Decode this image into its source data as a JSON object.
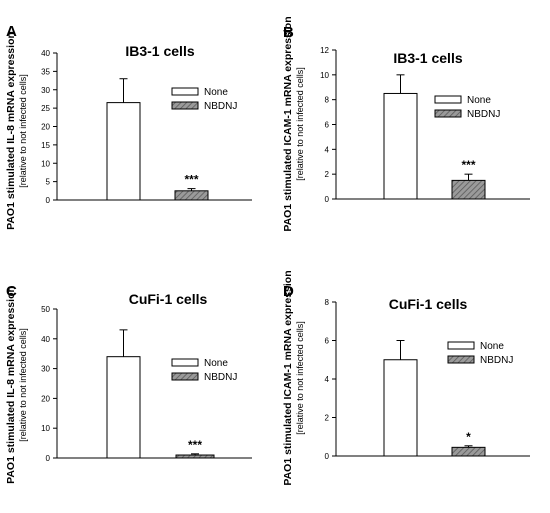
{
  "legend": {
    "none_label": "None",
    "treated_label": "NBDNJ"
  },
  "colors": {
    "none_fill": "#ffffff",
    "treated_fill": "#8c8c8c",
    "axis": "#000000"
  },
  "chart_data": [
    {
      "panel_letter": "A",
      "type": "bar",
      "title": "IB3-1 cells",
      "ylabel_line1": "PAO1 stimulated IL-8 mRNA expression",
      "ylabel_line2": "[relative to not infected cells]",
      "ylim": [
        0,
        40
      ],
      "yticks": [
        0,
        5,
        10,
        15,
        20,
        25,
        30,
        35,
        40
      ],
      "categories": [
        "None",
        "NBDNJ"
      ],
      "values": [
        26.5,
        2.5
      ],
      "errors": [
        6.5,
        0.6
      ],
      "significance": [
        "",
        "***"
      ],
      "legend_position": "top-right"
    },
    {
      "panel_letter": "B",
      "type": "bar",
      "title": "IB3-1 cells",
      "ylabel_line1": "PAO1 stimulated ICAM-1 mRNA expression",
      "ylabel_line2": "[relative to not infected cells]",
      "ylim": [
        0,
        12
      ],
      "yticks": [
        0,
        2,
        4,
        6,
        8,
        10,
        12
      ],
      "categories": [
        "None",
        "NBDNJ"
      ],
      "values": [
        8.5,
        1.5
      ],
      "errors": [
        1.5,
        0.5
      ],
      "significance": [
        "",
        "***"
      ],
      "legend_position": "top-right"
    },
    {
      "panel_letter": "C",
      "type": "bar",
      "title": "CuFi-1 cells",
      "ylabel_line1": "PAO1 stimulated IL-8 mRNA expression",
      "ylabel_line2": "[relative to not infected cells]",
      "ylim": [
        0,
        50
      ],
      "yticks": [
        0,
        10,
        20,
        30,
        40,
        50
      ],
      "categories": [
        "None",
        "NBDNJ"
      ],
      "values": [
        34,
        1
      ],
      "errors": [
        9,
        0.4
      ],
      "significance": [
        "",
        "***"
      ],
      "legend_position": "top-right"
    },
    {
      "panel_letter": "D",
      "type": "bar",
      "title": "CuFi-1 cells",
      "ylabel_line1": "PAO1 stimulated ICAM-1 mRNA expression",
      "ylabel_line2": "[relative to not infected cells]",
      "ylim": [
        0,
        8
      ],
      "yticks": [
        0,
        2,
        4,
        6,
        8
      ],
      "categories": [
        "None",
        "NBDNJ"
      ],
      "values": [
        5,
        0.45
      ],
      "errors": [
        1,
        0.08
      ],
      "significance": [
        "",
        "*"
      ],
      "legend_position": "top-right"
    }
  ]
}
